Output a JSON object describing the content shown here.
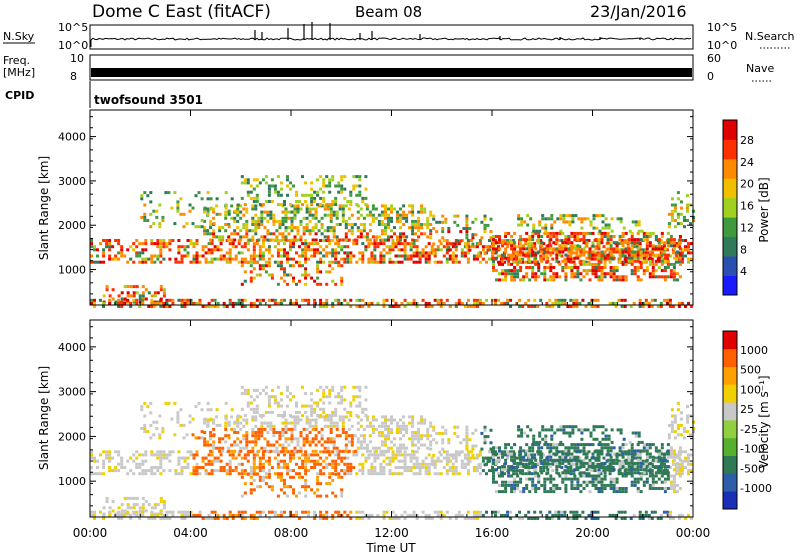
{
  "header": {
    "title": "Dome C East (fitACF)",
    "beam": "Beam 08",
    "date": "23/Jan/2016"
  },
  "panels": {
    "nsky": {
      "left_label": "N.Sky",
      "right_label": "N.Search",
      "left_ticks": [
        "10^5",
        "10^0"
      ],
      "right_ticks": [
        "10^5",
        "10^0"
      ],
      "right_legend_style": "dotted"
    },
    "freq": {
      "left_label": "Freq.",
      "left_unit": "[MHz]",
      "right_label": "Nave",
      "left_ticks": [
        "10",
        "8"
      ],
      "right_ticks": [
        "60",
        "0"
      ],
      "right_legend_style": "dotted"
    },
    "cpid": {
      "label": "CPID",
      "value": "twofsound 3501"
    }
  },
  "chart_data": [
    {
      "type": "heatmap",
      "name": "power",
      "ylabel": "Slant Range [km]",
      "yticks": [
        "1000",
        "2000",
        "3000",
        "4000"
      ],
      "ylim": [
        200,
        4600
      ],
      "xlim": [
        0,
        24
      ],
      "colorbar": {
        "label": "Power [dB]",
        "ticks": [
          "4",
          "8",
          "12",
          "16",
          "20",
          "24",
          "28"
        ],
        "colors": [
          "#1a1aff",
          "#2a4fb0",
          "#2f7a5a",
          "#3f9a3f",
          "#a0d020",
          "#f0c000",
          "#ff8a00",
          "#ff3000",
          "#e00000"
        ]
      }
    },
    {
      "type": "heatmap",
      "name": "velocity",
      "ylabel": "Slant Range [km]",
      "yticks": [
        "1000",
        "2000",
        "3000",
        "4000"
      ],
      "ylim": [
        200,
        4600
      ],
      "xlim": [
        0,
        24
      ],
      "xlabel": "Time UT",
      "xticks": [
        "00:00",
        "04:00",
        "08:00",
        "12:00",
        "16:00",
        "20:00",
        "00:00"
      ],
      "colorbar": {
        "label": "Velocity [m s⁻¹]",
        "ticks": [
          "1000",
          "500",
          "100",
          "25",
          "-25",
          "-100",
          "-500",
          "-1000"
        ],
        "colors": [
          "#1a2fb8",
          "#2d5fa8",
          "#2f7a55",
          "#56b030",
          "#90d040",
          "#c8c8c8",
          "#f0d000",
          "#ffa000",
          "#ff6000",
          "#e00000"
        ]
      }
    }
  ]
}
